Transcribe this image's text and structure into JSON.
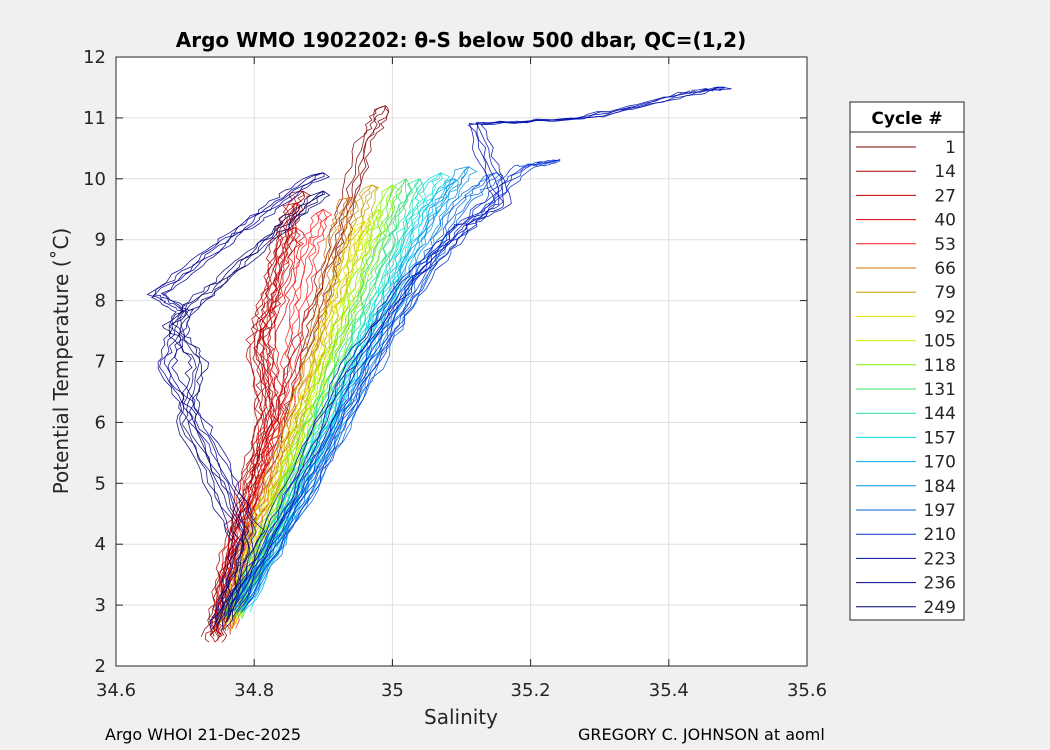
{
  "chart_data": {
    "type": "line",
    "title": "Argo WMO 1902202: θ-S below 500 dbar,  QC=(1,2)",
    "xlabel": "Salinity",
    "ylabel": "Potential Temperature (˚C)",
    "xlim": [
      34.6,
      35.6
    ],
    "ylim": [
      2,
      12
    ],
    "xticks": [
      "34.6",
      "34.8",
      "35",
      "35.2",
      "35.4",
      "35.6"
    ],
    "yticks": [
      "2",
      "3",
      "4",
      "5",
      "6",
      "7",
      "8",
      "9",
      "10",
      "11",
      "12"
    ],
    "grid": true,
    "legend_title": "Cycle #",
    "legend_position": "right-outside",
    "series": [
      {
        "name": "1",
        "color": "#800000",
        "points": [
          [
            34.74,
            2.5
          ],
          [
            34.76,
            3.4
          ],
          [
            34.79,
            4.6
          ],
          [
            34.83,
            5.8
          ],
          [
            34.86,
            7.0
          ],
          [
            34.9,
            8.2
          ],
          [
            34.93,
            9.3
          ],
          [
            34.96,
            10.6
          ],
          [
            34.99,
            11.2
          ]
        ]
      },
      {
        "name": "14",
        "color": "#a00000",
        "points": [
          [
            34.745,
            2.4
          ],
          [
            34.75,
            3.0
          ],
          [
            34.77,
            4.2
          ],
          [
            34.8,
            5.3
          ],
          [
            34.82,
            6.5
          ],
          [
            34.81,
            7.4
          ],
          [
            34.83,
            8.3
          ],
          [
            34.85,
            9.3
          ],
          [
            34.87,
            9.8
          ]
        ]
      },
      {
        "name": "27",
        "color": "#c00000",
        "points": [
          [
            34.75,
            2.5
          ],
          [
            34.76,
            3.5
          ],
          [
            34.79,
            4.8
          ],
          [
            34.82,
            6.0
          ],
          [
            34.8,
            7.2
          ],
          [
            34.82,
            8.0
          ],
          [
            34.84,
            9.0
          ],
          [
            34.86,
            9.6
          ]
        ]
      },
      {
        "name": "40",
        "color": "#e00000",
        "points": [
          [
            34.75,
            2.6
          ],
          [
            34.77,
            3.8
          ],
          [
            34.8,
            5.0
          ],
          [
            34.83,
            6.2
          ],
          [
            34.82,
            7.5
          ],
          [
            34.85,
            8.5
          ],
          [
            34.86,
            9.2
          ]
        ]
      },
      {
        "name": "53",
        "color": "#ff2020",
        "points": [
          [
            34.76,
            2.6
          ],
          [
            34.78,
            3.9
          ],
          [
            34.82,
            5.2
          ],
          [
            34.85,
            6.5
          ],
          [
            34.86,
            7.7
          ],
          [
            34.88,
            8.8
          ],
          [
            34.9,
            9.5
          ]
        ]
      },
      {
        "name": "66",
        "color": "#d07000",
        "points": [
          [
            34.76,
            2.7
          ],
          [
            34.79,
            4.0
          ],
          [
            34.84,
            5.5
          ],
          [
            34.88,
            6.9
          ],
          [
            34.9,
            8.0
          ],
          [
            34.92,
            9.1
          ],
          [
            34.94,
            9.7
          ]
        ]
      },
      {
        "name": "79",
        "color": "#c8a000",
        "points": [
          [
            34.76,
            2.6
          ],
          [
            34.8,
            4.2
          ],
          [
            34.85,
            5.7
          ],
          [
            34.89,
            7.1
          ],
          [
            34.92,
            8.2
          ],
          [
            34.95,
            9.2
          ],
          [
            34.97,
            9.9
          ]
        ]
      },
      {
        "name": "92",
        "color": "#e8e800",
        "points": [
          [
            34.76,
            2.7
          ],
          [
            34.81,
            4.3
          ],
          [
            34.86,
            5.8
          ],
          [
            34.9,
            7.2
          ],
          [
            34.93,
            8.4
          ],
          [
            34.96,
            9.3
          ]
        ]
      },
      {
        "name": "105",
        "color": "#c0f000",
        "points": [
          [
            34.77,
            2.8
          ],
          [
            34.82,
            4.4
          ],
          [
            34.87,
            6.0
          ],
          [
            34.92,
            7.4
          ],
          [
            34.95,
            8.6
          ],
          [
            34.98,
            9.5
          ]
        ]
      },
      {
        "name": "118",
        "color": "#80f000",
        "points": [
          [
            34.77,
            2.8
          ],
          [
            34.83,
            4.5
          ],
          [
            34.88,
            6.1
          ],
          [
            34.93,
            7.6
          ],
          [
            34.97,
            8.8
          ],
          [
            35.0,
            9.9
          ]
        ]
      },
      {
        "name": "131",
        "color": "#40e060",
        "points": [
          [
            34.77,
            2.8
          ],
          [
            34.84,
            4.6
          ],
          [
            34.9,
            6.3
          ],
          [
            34.95,
            7.8
          ],
          [
            34.99,
            9.0
          ],
          [
            35.02,
            10.0
          ]
        ]
      },
      {
        "name": "144",
        "color": "#20e0a0",
        "points": [
          [
            34.77,
            2.9
          ],
          [
            34.85,
            4.7
          ],
          [
            34.91,
            6.4
          ],
          [
            34.97,
            7.9
          ],
          [
            35.01,
            9.1
          ],
          [
            35.04,
            10.0
          ]
        ]
      },
      {
        "name": "157",
        "color": "#00e0e0",
        "points": [
          [
            34.78,
            2.9
          ],
          [
            34.86,
            4.8
          ],
          [
            34.93,
            6.6
          ],
          [
            34.99,
            8.1
          ],
          [
            35.03,
            9.3
          ],
          [
            35.07,
            10.1
          ]
        ]
      },
      {
        "name": "170",
        "color": "#00b0f0",
        "points": [
          [
            34.78,
            2.9
          ],
          [
            34.87,
            4.9
          ],
          [
            34.94,
            6.7
          ],
          [
            35.0,
            8.2
          ],
          [
            35.05,
            9.4
          ],
          [
            35.09,
            10.0
          ]
        ]
      },
      {
        "name": "184",
        "color": "#0090e0",
        "points": [
          [
            34.78,
            3.0
          ],
          [
            34.88,
            5.0
          ],
          [
            34.96,
            6.9
          ],
          [
            35.02,
            8.4
          ],
          [
            35.07,
            9.5
          ],
          [
            35.11,
            10.2
          ]
        ]
      },
      {
        "name": "197",
        "color": "#0060e0",
        "points": [
          [
            34.78,
            3.0
          ],
          [
            34.89,
            5.1
          ],
          [
            34.98,
            7.1
          ],
          [
            35.05,
            8.6
          ],
          [
            35.1,
            9.6
          ],
          [
            35.15,
            10.1
          ]
        ]
      },
      {
        "name": "210",
        "color": "#0030d0",
        "points": [
          [
            34.77,
            2.9
          ],
          [
            34.88,
            5.0
          ],
          [
            34.97,
            7.0
          ],
          [
            35.05,
            8.5
          ],
          [
            35.12,
            9.4
          ],
          [
            35.19,
            10.2
          ],
          [
            35.24,
            10.3
          ]
        ]
      },
      {
        "name": "223",
        "color": "#0010b0",
        "points": [
          [
            34.76,
            2.8
          ],
          [
            34.85,
            4.8
          ],
          [
            34.93,
            6.8
          ],
          [
            35.02,
            8.3
          ],
          [
            35.1,
            9.2
          ],
          [
            35.16,
            9.6
          ],
          [
            35.12,
            10.9
          ],
          [
            35.28,
            11.0
          ],
          [
            35.43,
            11.4
          ],
          [
            35.48,
            11.5
          ]
        ]
      },
      {
        "name": "236",
        "color": "#000090",
        "points": [
          [
            34.75,
            2.7
          ],
          [
            34.8,
            4.2
          ],
          [
            34.73,
            5.8
          ],
          [
            34.67,
            6.9
          ],
          [
            34.7,
            7.8
          ],
          [
            34.66,
            8.1
          ],
          [
            34.75,
            8.9
          ],
          [
            34.82,
            9.5
          ],
          [
            34.9,
            10.1
          ]
        ]
      },
      {
        "name": "249",
        "color": "#000070",
        "points": [
          [
            34.75,
            2.6
          ],
          [
            34.78,
            4.0
          ],
          [
            34.7,
            6.0
          ],
          [
            34.72,
            7.0
          ],
          [
            34.68,
            7.6
          ],
          [
            34.76,
            8.4
          ],
          [
            34.84,
            9.2
          ],
          [
            34.9,
            9.8
          ]
        ]
      }
    ]
  },
  "footer": {
    "left": "Argo WHOI 21-Dec-2025",
    "right": "GREGORY C. JOHNSON at aoml"
  }
}
